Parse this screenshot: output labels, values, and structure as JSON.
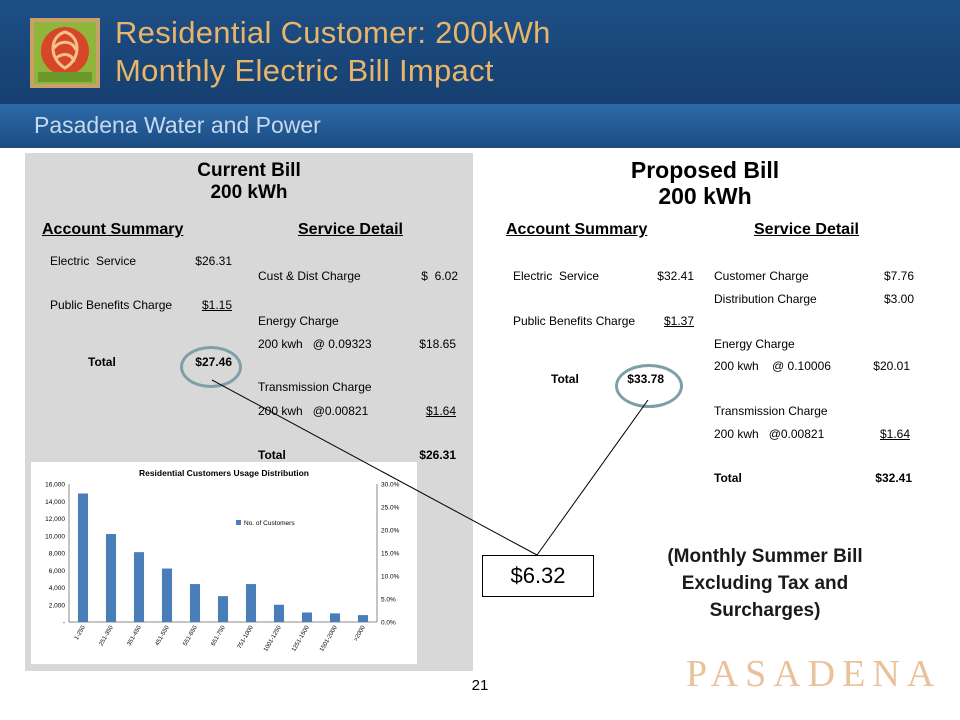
{
  "header": {
    "title_line1": "Residential Customer: 200kWh",
    "title_line2": "Monthly Electric Bill Impact",
    "subtitle": "Pasadena Water and Power"
  },
  "current": {
    "title_line1": "Current Bill",
    "title_line2": "200 kWh",
    "account_summary_heading": "Account Summary",
    "service_detail_heading": "Service Detail",
    "summary": [
      {
        "label": "Electric  Service",
        "value": "$26.31"
      },
      {
        "label": "Public Benefits Charge",
        "value": "$1.15"
      }
    ],
    "summary_total_label": "Total",
    "summary_total_value": "$27.46",
    "detail": {
      "cust_dist_label": "Cust & Dist Charge",
      "cust_dist_value": "$  6.02",
      "energy_label": "Energy Charge",
      "energy_calc": "200 kwh   @ 0.09323",
      "energy_value": "$18.65",
      "transmission_label": "Transmission Charge",
      "transmission_calc": "200 kwh   @0.00821",
      "transmission_value": "$1.64",
      "total_label": "Total",
      "total_value": "$26.31"
    }
  },
  "proposed": {
    "title_line1": "Proposed  Bill",
    "title_line2": "200 kWh",
    "account_summary_heading": "Account Summary",
    "service_detail_heading": "Service Detail",
    "summary": [
      {
        "label": "Electric  Service",
        "value": "$32.41"
      },
      {
        "label": "Public Benefits Charge",
        "value": "$1.37"
      }
    ],
    "summary_total_label": "Total",
    "summary_total_value": "$33.78",
    "detail": {
      "customer_label": "Customer Charge",
      "customer_value": "$7.76",
      "distribution_label": "Distribution Charge",
      "distribution_value": "$3.00",
      "energy_label": "Energy Charge",
      "energy_calc": "200 kwh    @ 0.10006",
      "energy_value": "$20.01",
      "transmission_label": "Transmission Charge",
      "transmission_calc": "200 kwh   @0.00821",
      "transmission_value": "$1.64",
      "total_label": "Total",
      "total_value": "$32.41"
    }
  },
  "difference": "$6.32",
  "note_lines": [
    "(Monthly Summer Bill",
    "Excluding Tax and",
    "Surcharges)"
  ],
  "brand_wordmark": "PASADENA",
  "page_number": "21",
  "colors": {
    "header_bg": "#1d4f86",
    "title_text": "#e8b56a",
    "panel_bg": "#d8d8d8",
    "bar": "#4a7ebb",
    "wordmark": "#e8c29a"
  },
  "chart_data": {
    "type": "bar",
    "title": "Residential Customers Usage Distribution",
    "legend": "No. of Customers",
    "categories": [
      "1-250",
      "251-350",
      "351-450",
      "451-550",
      "551-650",
      "651-750",
      "751-1000",
      "1001-1250",
      "1251-1500",
      "1501-2000",
      ">2000"
    ],
    "values": [
      14900,
      10200,
      8100,
      6200,
      4400,
      3000,
      4400,
      2000,
      1100,
      1000,
      800
    ],
    "y_ticks": [
      "-",
      "2,000",
      "4,000",
      "6,000",
      "8,000",
      "10,000",
      "12,000",
      "14,000",
      "16,000"
    ],
    "ylim": [
      0,
      16000
    ],
    "y2_ticks": [
      "0.0%",
      "5.0%",
      "10.0%",
      "15.0%",
      "20.0%",
      "25.0%",
      "30.0%"
    ],
    "legend_position": "right"
  }
}
